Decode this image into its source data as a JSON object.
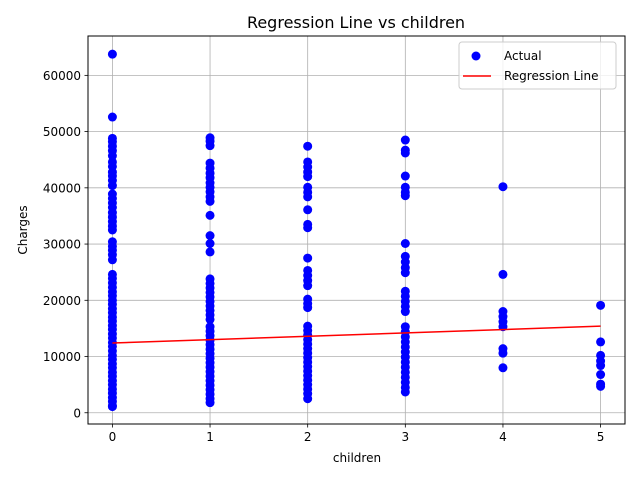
{
  "chart_data": {
    "type": "scatter",
    "title": "Regression Line vs children",
    "xlabel": "children",
    "ylabel": "Charges",
    "xlim": [
      -0.25,
      5.25
    ],
    "ylim": [
      -2000,
      67000
    ],
    "xticks": [
      0,
      1,
      2,
      3,
      4,
      5
    ],
    "xtick_labels": [
      "0",
      "1",
      "2",
      "3",
      "4",
      "5"
    ],
    "yticks": [
      0,
      10000,
      20000,
      30000,
      40000,
      50000,
      60000
    ],
    "ytick_labels": [
      "0",
      "10000",
      "20000",
      "30000",
      "40000",
      "50000",
      "60000"
    ],
    "grid": true,
    "legend_position": "top-right",
    "series": [
      {
        "name": "Actual",
        "kind": "scatter",
        "color": "#0000ff",
        "points": [
          [
            0,
            63770
          ],
          [
            0,
            52590
          ],
          [
            0,
            48800
          ],
          [
            0,
            48200
          ],
          [
            0,
            47400
          ],
          [
            0,
            46600
          ],
          [
            0,
            45700
          ],
          [
            0,
            44600
          ],
          [
            0,
            43800
          ],
          [
            0,
            42800
          ],
          [
            0,
            42100
          ],
          [
            0,
            41300
          ],
          [
            0,
            40400
          ],
          [
            0,
            38900
          ],
          [
            0,
            38100
          ],
          [
            0,
            37300
          ],
          [
            0,
            36500
          ],
          [
            0,
            35600
          ],
          [
            0,
            34800
          ],
          [
            0,
            34000
          ],
          [
            0,
            33200
          ],
          [
            0,
            32500
          ],
          [
            0,
            30400
          ],
          [
            0,
            29600
          ],
          [
            0,
            28900
          ],
          [
            0,
            28100
          ],
          [
            0,
            27200
          ],
          [
            0,
            24600
          ],
          [
            0,
            23900
          ],
          [
            0,
            23100
          ],
          [
            0,
            22300
          ],
          [
            0,
            21500
          ],
          [
            0,
            20800
          ],
          [
            0,
            20000
          ],
          [
            0,
            19300
          ],
          [
            0,
            18500
          ],
          [
            0,
            17800
          ],
          [
            0,
            17000
          ],
          [
            0,
            16300
          ],
          [
            0,
            15500
          ],
          [
            0,
            14800
          ],
          [
            0,
            14000
          ],
          [
            0,
            13300
          ],
          [
            0,
            12500
          ],
          [
            0,
            11800
          ],
          [
            0,
            11000
          ],
          [
            0,
            10200
          ],
          [
            0,
            9500
          ],
          [
            0,
            8700
          ],
          [
            0,
            8000
          ],
          [
            0,
            7200
          ],
          [
            0,
            6500
          ],
          [
            0,
            5700
          ],
          [
            0,
            5000
          ],
          [
            0,
            4200
          ],
          [
            0,
            3500
          ],
          [
            0,
            2700
          ],
          [
            0,
            2000
          ],
          [
            0,
            1300
          ],
          [
            0,
            1100
          ],
          [
            1,
            48900
          ],
          [
            1,
            48300
          ],
          [
            1,
            47500
          ],
          [
            1,
            44400
          ],
          [
            1,
            43500
          ],
          [
            1,
            42600
          ],
          [
            1,
            41800
          ],
          [
            1,
            40900
          ],
          [
            1,
            40100
          ],
          [
            1,
            39300
          ],
          [
            1,
            38400
          ],
          [
            1,
            37600
          ],
          [
            1,
            35100
          ],
          [
            1,
            31500
          ],
          [
            1,
            30100
          ],
          [
            1,
            28600
          ],
          [
            1,
            23800
          ],
          [
            1,
            23000
          ],
          [
            1,
            22200
          ],
          [
            1,
            21400
          ],
          [
            1,
            20600
          ],
          [
            1,
            19800
          ],
          [
            1,
            19000
          ],
          [
            1,
            18200
          ],
          [
            1,
            17400
          ],
          [
            1,
            16600
          ],
          [
            1,
            15300
          ],
          [
            1,
            14500
          ],
          [
            1,
            13700
          ],
          [
            1,
            12900
          ],
          [
            1,
            12100
          ],
          [
            1,
            11300
          ],
          [
            1,
            10500
          ],
          [
            1,
            9700
          ],
          [
            1,
            8900
          ],
          [
            1,
            8100
          ],
          [
            1,
            7300
          ],
          [
            1,
            6500
          ],
          [
            1,
            5700
          ],
          [
            1,
            4900
          ],
          [
            1,
            4100
          ],
          [
            1,
            3300
          ],
          [
            1,
            2500
          ],
          [
            1,
            1800
          ],
          [
            2,
            47400
          ],
          [
            2,
            44600
          ],
          [
            2,
            43700
          ],
          [
            2,
            42800
          ],
          [
            2,
            42000
          ],
          [
            2,
            40100
          ],
          [
            2,
            39200
          ],
          [
            2,
            38400
          ],
          [
            2,
            36100
          ],
          [
            2,
            33500
          ],
          [
            2,
            32900
          ],
          [
            2,
            27500
          ],
          [
            2,
            25300
          ],
          [
            2,
            24400
          ],
          [
            2,
            23500
          ],
          [
            2,
            22600
          ],
          [
            2,
            20200
          ],
          [
            2,
            19400
          ],
          [
            2,
            18700
          ],
          [
            2,
            15400
          ],
          [
            2,
            14600
          ],
          [
            2,
            13800
          ],
          [
            2,
            13000
          ],
          [
            2,
            12200
          ],
          [
            2,
            11400
          ],
          [
            2,
            10600
          ],
          [
            2,
            9800
          ],
          [
            2,
            9000
          ],
          [
            2,
            8200
          ],
          [
            2,
            7400
          ],
          [
            2,
            6600
          ],
          [
            2,
            5800
          ],
          [
            2,
            5000
          ],
          [
            2,
            4200
          ],
          [
            2,
            3400
          ],
          [
            2,
            2500
          ],
          [
            3,
            48500
          ],
          [
            3,
            46700
          ],
          [
            3,
            46200
          ],
          [
            3,
            42100
          ],
          [
            3,
            40100
          ],
          [
            3,
            39200
          ],
          [
            3,
            38600
          ],
          [
            3,
            30100
          ],
          [
            3,
            27800
          ],
          [
            3,
            26800
          ],
          [
            3,
            25800
          ],
          [
            3,
            24900
          ],
          [
            3,
            21600
          ],
          [
            3,
            20700
          ],
          [
            3,
            19800
          ],
          [
            3,
            18900
          ],
          [
            3,
            18000
          ],
          [
            3,
            15300
          ],
          [
            3,
            14400
          ],
          [
            3,
            13500
          ],
          [
            3,
            12600
          ],
          [
            3,
            11700
          ],
          [
            3,
            10800
          ],
          [
            3,
            9900
          ],
          [
            3,
            9000
          ],
          [
            3,
            8100
          ],
          [
            3,
            7200
          ],
          [
            3,
            6300
          ],
          [
            3,
            5400
          ],
          [
            3,
            4500
          ],
          [
            3,
            3700
          ],
          [
            4,
            40200
          ],
          [
            4,
            24600
          ],
          [
            4,
            18000
          ],
          [
            4,
            17100
          ],
          [
            4,
            16200
          ],
          [
            4,
            15300
          ],
          [
            4,
            11400
          ],
          [
            4,
            10600
          ],
          [
            4,
            8000
          ],
          [
            5,
            19100
          ],
          [
            5,
            12600
          ],
          [
            5,
            10200
          ],
          [
            5,
            9200
          ],
          [
            5,
            8400
          ],
          [
            5,
            6800
          ],
          [
            5,
            5100
          ],
          [
            5,
            4700
          ]
        ]
      },
      {
        "name": "Regression Line",
        "kind": "line",
        "color": "#ff0000",
        "x": [
          0,
          5
        ],
        "y": [
          12400,
          15400
        ]
      }
    ]
  }
}
